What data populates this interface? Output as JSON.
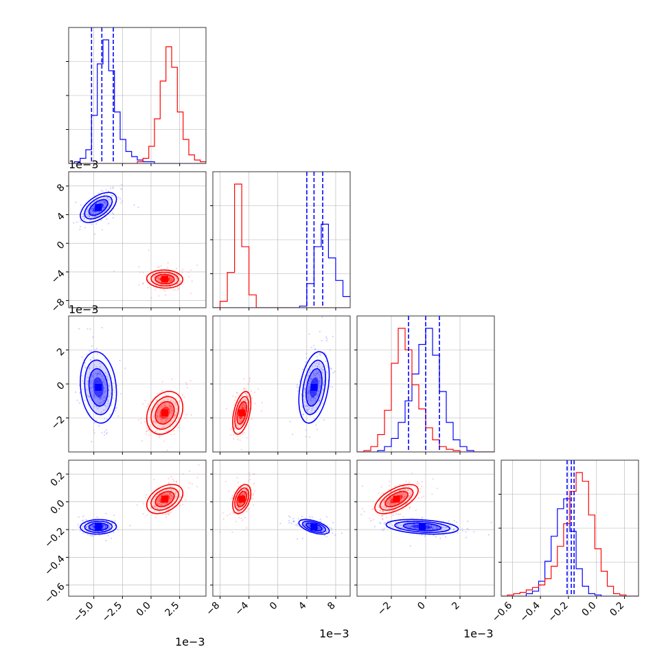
{
  "colors": {
    "blue": "#0000ff",
    "red": "#ff0000",
    "grid": "#b0b0b0",
    "frame": "#333333"
  },
  "offset_labels": {
    "x1": "1e−3",
    "x2": "1e−3",
    "x3": "1e−3",
    "y2": "1e−3",
    "y3": "1e−3"
  },
  "chart_data": {
    "type": "corner",
    "parameters": [
      {
        "ticks": [
          -5.0,
          -2.5,
          0.0,
          2.5
        ],
        "tick_labels": [
          "−5.0",
          "−2.5",
          "0.0",
          "2.5"
        ],
        "range": [
          -7.2,
          4.8
        ],
        "offset_label": "1e−3"
      },
      {
        "ticks": [
          -8,
          -4,
          0,
          4,
          8
        ],
        "tick_labels": [
          "−8",
          "−4",
          "0",
          "4",
          "8"
        ],
        "range": [
          -9,
          10
        ],
        "offset_label": "1e−3"
      },
      {
        "ticks": [
          -2,
          0,
          2
        ],
        "tick_labels": [
          "−2",
          "0",
          "2"
        ],
        "range": [
          -4.0,
          4.0
        ],
        "offset_label": "1e−3"
      },
      {
        "ticks": [
          -0.6,
          -0.4,
          -0.2,
          0.0,
          0.2
        ],
        "tick_labels": [
          "−0.6",
          "−0.4",
          "−0.2",
          "0.0",
          "0.2"
        ],
        "range": [
          -0.68,
          0.3
        ]
      }
    ],
    "series": [
      {
        "color": "blue",
        "quantiles": [
          [
            -5.2,
            -4.3,
            -3.3
          ],
          [
            4.0,
            5.0,
            6.2
          ],
          [
            -1.0,
            0.0,
            0.8
          ],
          [
            -0.21,
            -0.18,
            -0.16
          ]
        ],
        "centers": [
          -4.6,
          5.0,
          -0.2,
          -0.18
        ]
      },
      {
        "color": "red",
        "centers": [
          1.2,
          -5.0,
          -1.7,
          0.02
        ]
      }
    ],
    "histograms": [
      {
        "bins": [
          -7.2,
          4.8,
          24
        ],
        "blue": [
          0,
          1,
          3,
          8,
          28,
          58,
          72,
          54,
          30,
          14,
          7,
          4,
          2,
          1,
          1,
          0,
          0,
          0,
          0,
          0,
          0,
          0,
          0,
          0
        ],
        "red": [
          0,
          0,
          0,
          0,
          0,
          0,
          0,
          0,
          0,
          0,
          0,
          0,
          1,
          3,
          10,
          26,
          48,
          68,
          56,
          30,
          14,
          5,
          2,
          1
        ]
      },
      {
        "bins": [
          -9,
          10,
          19
        ],
        "red": [
          0,
          4,
          22,
          77,
          38,
          8,
          0,
          0,
          0,
          0,
          0,
          0,
          0,
          0,
          0,
          0,
          0,
          0,
          0
        ],
        "blue": [
          0,
          0,
          0,
          0,
          0,
          0,
          0,
          0,
          0,
          0,
          0,
          0,
          1,
          15,
          38,
          52,
          31,
          17,
          7
        ]
      },
      {
        "bins": [
          -4.0,
          4.0,
          20
        ],
        "red": [
          0,
          1,
          4,
          13,
          31,
          66,
          92,
          76,
          50,
          32,
          18,
          9,
          4,
          2,
          1,
          0,
          0,
          0,
          0,
          0
        ],
        "blue": [
          0,
          0,
          0,
          1,
          4,
          10,
          22,
          38,
          58,
          80,
          92,
          72,
          45,
          22,
          9,
          4,
          1,
          0,
          0,
          0
        ]
      },
      {
        "bins": [
          -0.68,
          0.3,
          22
        ],
        "red": [
          0,
          1,
          2,
          3,
          5,
          7,
          9,
          14,
          24,
          40,
          58,
          84,
          99,
          92,
          65,
          38,
          20,
          8,
          2,
          1,
          0,
          0
        ],
        "blue": [
          0,
          0,
          0,
          0,
          2,
          4,
          12,
          28,
          48,
          70,
          78,
          52,
          22,
          8,
          2,
          1,
          0,
          0,
          0,
          0,
          0,
          0
        ]
      }
    ]
  }
}
